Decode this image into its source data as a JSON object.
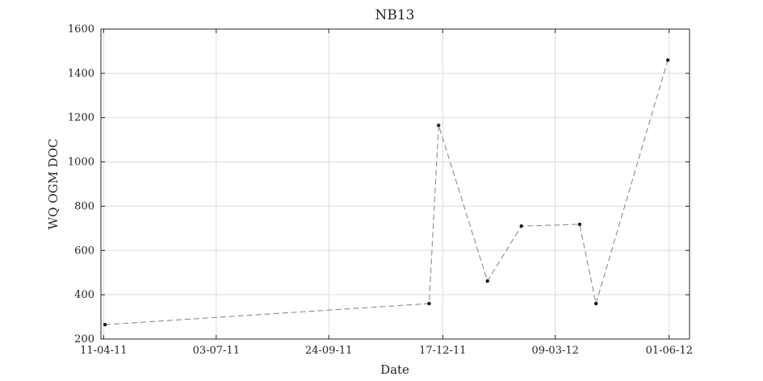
{
  "chart_data": {
    "type": "line",
    "title": "NB13",
    "xlabel": "Date",
    "ylabel": "WQ OGM DOC",
    "ylim": [
      200,
      1600
    ],
    "yticks": [
      200,
      400,
      600,
      800,
      1000,
      1200,
      1400,
      1600
    ],
    "xlim": [
      "2011-04-09",
      "2012-06-16"
    ],
    "xticks": [
      {
        "date": "2011-04-11",
        "label": "11-04-11"
      },
      {
        "date": "2011-07-03",
        "label": "03-07-11"
      },
      {
        "date": "2011-09-24",
        "label": "24-09-11"
      },
      {
        "date": "2011-12-17",
        "label": "17-12-11"
      },
      {
        "date": "2012-03-09",
        "label": "09-03-12"
      },
      {
        "date": "2012-06-01",
        "label": "01-06-12"
      }
    ],
    "grid": true,
    "line_style": "dashed",
    "line_color": "#8c8c8c",
    "marker_color": "#1a1a1a",
    "series": [
      {
        "points": [
          {
            "x": "2011-04-12",
            "y": 265
          },
          {
            "x": "2011-12-07",
            "y": 360
          },
          {
            "x": "2011-12-14",
            "y": 1165
          },
          {
            "x": "2012-01-19",
            "y": 462
          },
          {
            "x": "2012-02-13",
            "y": 710
          },
          {
            "x": "2012-03-27",
            "y": 718
          },
          {
            "x": "2012-04-08",
            "y": 360
          },
          {
            "x": "2012-05-31",
            "y": 1460
          }
        ]
      }
    ]
  }
}
